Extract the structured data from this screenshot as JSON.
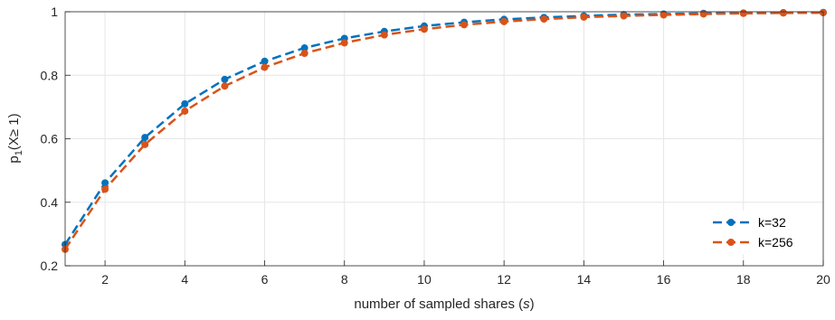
{
  "chart_data": {
    "type": "line",
    "xlabel": {
      "prefix": "number of sampled shares (",
      "var": "s",
      "suffix": ")"
    },
    "ylabel": {
      "base": "p",
      "sub": "1",
      "rest": "(X≥ 1)"
    },
    "xlim": [
      1,
      20
    ],
    "ylim": [
      0.2,
      1
    ],
    "xticks": [
      2,
      4,
      6,
      8,
      10,
      12,
      14,
      16,
      18,
      20
    ],
    "yticks": [
      0.2,
      0.4,
      0.6,
      0.8,
      1
    ],
    "ytick_labels": [
      "0.2",
      "0.4",
      "0.6",
      "0.8",
      "1"
    ],
    "grid": true,
    "legend_position": "bottom-right",
    "x": [
      1,
      2,
      3,
      4,
      5,
      6,
      7,
      8,
      9,
      10,
      11,
      12,
      13,
      14,
      15,
      16,
      17,
      18,
      19,
      20
    ],
    "series": [
      {
        "name": "k=32",
        "color": "#0072BD",
        "values": [
          0.267,
          0.461,
          0.604,
          0.71,
          0.787,
          0.844,
          0.886,
          0.916,
          0.938,
          0.955,
          0.967,
          0.976,
          0.982,
          0.987,
          0.991,
          0.993,
          0.995,
          0.996,
          0.997,
          0.998
        ]
      },
      {
        "name": "k=256",
        "color": "#D95319",
        "values": [
          0.252,
          0.441,
          0.582,
          0.687,
          0.766,
          0.825,
          0.869,
          0.902,
          0.927,
          0.945,
          0.959,
          0.969,
          0.977,
          0.983,
          0.987,
          0.99,
          0.993,
          0.995,
          0.996,
          0.997
        ]
      }
    ]
  }
}
